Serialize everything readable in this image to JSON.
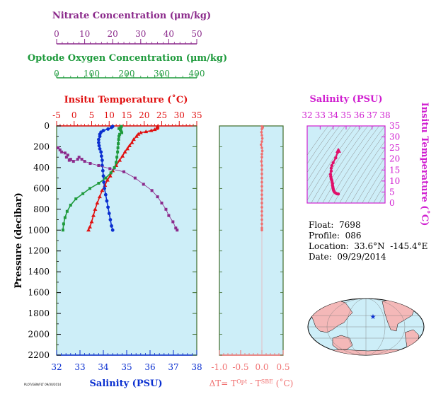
{
  "colors": {
    "nitrate": "#8b2a8b",
    "oxygen": "#1e9a3c",
    "temperature": "#e01010",
    "salinity": "#0a2fd0",
    "delta_t": "#f07070",
    "ts_salinity": "#d020d0",
    "plot_bg": "#cdeef8",
    "land": "#f4b8b8",
    "ocean": "#cdeef8",
    "frame": "#3d6b2a"
  },
  "float_info": {
    "float": "Float:  7698",
    "profile": "Profile:  086",
    "location": "Location:  33.6°N  -145.4°E",
    "date": "Date:  09/29/2014"
  },
  "small_stamp": "PLOT/GEN/FLT 09/30/2014",
  "chart_data": [
    {
      "id": "main-profile",
      "type": "line",
      "y_axis": {
        "label": "Pressure (decibar)",
        "ylim": [
          0,
          2200
        ],
        "ticks": [
          0,
          200,
          400,
          600,
          800,
          1000,
          1200,
          1400,
          1600,
          1800,
          2000,
          2200
        ],
        "inverted": true
      },
      "x_axes": [
        {
          "key": "salinity",
          "title": "Salinity (PSU)",
          "position": "bottom",
          "xlim": [
            32,
            38
          ],
          "ticks": [
            32,
            33,
            34,
            35,
            36,
            37,
            38
          ]
        },
        {
          "key": "temperature",
          "title": "Insitu Temperature (˚C)",
          "position": "top-1",
          "xlim": [
            -5,
            35
          ],
          "ticks": [
            -5,
            0,
            5,
            10,
            15,
            20,
            25,
            30,
            35
          ]
        },
        {
          "key": "oxygen",
          "title": "Optode Oxygen Concentration (μm/kg)",
          "position": "top-2",
          "xlim": [
            0,
            400
          ],
          "ticks": [
            0,
            100,
            200,
            300,
            400
          ]
        },
        {
          "key": "nitrate",
          "title": "Nitrate Concentration (μm/kg)",
          "position": "top-3",
          "xlim": [
            0,
            50
          ],
          "ticks": [
            0,
            10,
            20,
            30,
            40,
            50
          ]
        }
      ],
      "series": [
        {
          "key": "temperature",
          "marker": "triangle",
          "values": [
            [
              23.8,
              5
            ],
            [
              23.8,
              15
            ],
            [
              23.6,
              25
            ],
            [
              23,
              35
            ],
            [
              22,
              45
            ],
            [
              20.5,
              55
            ],
            [
              19,
              65
            ],
            [
              18.3,
              80
            ],
            [
              17.8,
              100
            ],
            [
              17,
              130
            ],
            [
              16.5,
              160
            ],
            [
              15.8,
              190
            ],
            [
              15.2,
              220
            ],
            [
              14.5,
              250
            ],
            [
              13.8,
              290
            ],
            [
              13,
              330
            ],
            [
              12,
              380
            ],
            [
              11,
              430
            ],
            [
              10.3,
              480
            ],
            [
              9.5,
              520
            ],
            [
              8.8,
              570
            ],
            [
              8,
              620
            ],
            [
              7.3,
              680
            ],
            [
              6.6,
              740
            ],
            [
              6,
              800
            ],
            [
              5.5,
              860
            ],
            [
              5,
              920
            ],
            [
              4.5,
              970
            ],
            [
              4.1,
              1000
            ]
          ]
        },
        {
          "key": "salinity",
          "marker": "circle",
          "values": [
            [
              34.4,
              5
            ],
            [
              34.35,
              15
            ],
            [
              34.2,
              30
            ],
            [
              34,
              45
            ],
            [
              33.9,
              60
            ],
            [
              33.85,
              80
            ],
            [
              33.85,
              100
            ],
            [
              33.8,
              130
            ],
            [
              33.8,
              160
            ],
            [
              33.82,
              190
            ],
            [
              33.85,
              220
            ],
            [
              33.9,
              250
            ],
            [
              33.92,
              290
            ],
            [
              33.95,
              330
            ],
            [
              33.95,
              380
            ],
            [
              33.98,
              430
            ],
            [
              34,
              480
            ],
            [
              34.02,
              540
            ],
            [
              34.05,
              600
            ],
            [
              34.1,
              660
            ],
            [
              34.15,
              720
            ],
            [
              34.2,
              780
            ],
            [
              34.25,
              840
            ],
            [
              34.3,
              900
            ],
            [
              34.35,
              960
            ],
            [
              34.4,
              1000
            ]
          ]
        },
        {
          "key": "oxygen",
          "marker": "square",
          "values": [
            [
              185,
              5
            ],
            [
              183,
              15
            ],
            [
              178,
              25
            ],
            [
              182,
              35
            ],
            [
              184,
              50
            ],
            [
              186,
              65
            ],
            [
              180,
              80
            ],
            [
              178,
              100
            ],
            [
              177,
              130
            ],
            [
              176,
              170
            ],
            [
              175,
              210
            ],
            [
              174,
              250
            ],
            [
              172,
              300
            ],
            [
              170,
              350
            ],
            [
              165,
              400
            ],
            [
              155,
              450
            ],
            [
              140,
              500
            ],
            [
              120,
              550
            ],
            [
              95,
              600
            ],
            [
              75,
              650
            ],
            [
              55,
              700
            ],
            [
              40,
              760
            ],
            [
              30,
              820
            ],
            [
              24,
              880
            ],
            [
              20,
              940
            ],
            [
              18,
              1000
            ]
          ]
        },
        {
          "key": "nitrate",
          "marker": "square",
          "values": [
            [
              0.5,
              210
            ],
            [
              1.2,
              230
            ],
            [
              1.8,
              250
            ],
            [
              3,
              260
            ],
            [
              4,
              280
            ],
            [
              3.5,
              300
            ],
            [
              5,
              320
            ],
            [
              4.5,
              330
            ],
            [
              6,
              340
            ],
            [
              7.5,
              320
            ],
            [
              8,
              300
            ],
            [
              9,
              320
            ],
            [
              10,
              340
            ],
            [
              12,
              360
            ],
            [
              15,
              380
            ],
            [
              19,
              410
            ],
            [
              24,
              440
            ],
            [
              28,
              500
            ],
            [
              31,
              560
            ],
            [
              34,
              620
            ],
            [
              36,
              680
            ],
            [
              37.5,
              740
            ],
            [
              39,
              800
            ],
            [
              40,
              860
            ],
            [
              41.5,
              920
            ],
            [
              42.5,
              980
            ],
            [
              43,
              1000
            ]
          ]
        }
      ]
    },
    {
      "id": "delta-t",
      "type": "line",
      "xlabel": "ΔT= T",
      "xlabel_sup1": "Opt",
      "xlabel_mid": " - T",
      "xlabel_sup2": "SBE",
      "xlabel_unit": " (˚C)",
      "xlim": [
        -1.0,
        0.5
      ],
      "ticks": [
        -1.0,
        -0.5,
        0.0,
        0.5
      ],
      "tick_labels": [
        "-1.0",
        "-0.5",
        "0.0",
        "0.5"
      ],
      "ylim": [
        0,
        2200
      ],
      "values": [
        [
          0.0,
          5
        ],
        [
          0.02,
          15
        ],
        [
          0.0,
          30
        ],
        [
          -0.01,
          60
        ],
        [
          0.0,
          90
        ],
        [
          0.01,
          120
        ],
        [
          0.0,
          150
        ],
        [
          -0.02,
          180
        ],
        [
          0.0,
          210
        ],
        [
          0.01,
          240
        ],
        [
          0.0,
          270
        ],
        [
          0.0,
          300
        ],
        [
          -0.01,
          340
        ],
        [
          0.0,
          380
        ],
        [
          0.0,
          420
        ],
        [
          0.0,
          460
        ],
        [
          0.0,
          500
        ],
        [
          0.0,
          540
        ],
        [
          0.0,
          580
        ],
        [
          0.0,
          620
        ],
        [
          0.0,
          660
        ],
        [
          0.0,
          700
        ],
        [
          0.0,
          740
        ],
        [
          0.0,
          780
        ],
        [
          0.0,
          820
        ],
        [
          0.0,
          860
        ],
        [
          0.0,
          900
        ],
        [
          0.0,
          940
        ],
        [
          0.0,
          980
        ],
        [
          0.0,
          1000
        ]
      ]
    },
    {
      "id": "ts-diagram",
      "type": "scatter",
      "title": "Salinity (PSU)",
      "ylabel": "Insitu Temperature (˚C)",
      "xlim": [
        32,
        38
      ],
      "xticks": [
        32,
        33,
        34,
        35,
        36,
        37,
        38
      ],
      "ylim": [
        0,
        35
      ],
      "yticks": [
        0,
        5,
        10,
        15,
        20,
        25,
        30,
        35
      ],
      "values": [
        [
          34.4,
          23.8
        ],
        [
          34.35,
          23
        ],
        [
          34.2,
          20.5
        ],
        [
          34,
          18.3
        ],
        [
          33.9,
          17
        ],
        [
          33.85,
          15.8
        ],
        [
          33.85,
          14.5
        ],
        [
          33.8,
          13
        ],
        [
          33.82,
          12
        ],
        [
          33.85,
          11
        ],
        [
          33.9,
          10.3
        ],
        [
          33.92,
          9.5
        ],
        [
          33.95,
          8.8
        ],
        [
          33.95,
          8
        ],
        [
          33.98,
          7.3
        ],
        [
          34,
          6.6
        ],
        [
          34.02,
          6
        ],
        [
          34.05,
          5.5
        ],
        [
          34.1,
          5
        ],
        [
          34.2,
          4.5
        ],
        [
          34.3,
          4.2
        ],
        [
          34.4,
          4.1
        ]
      ]
    }
  ]
}
